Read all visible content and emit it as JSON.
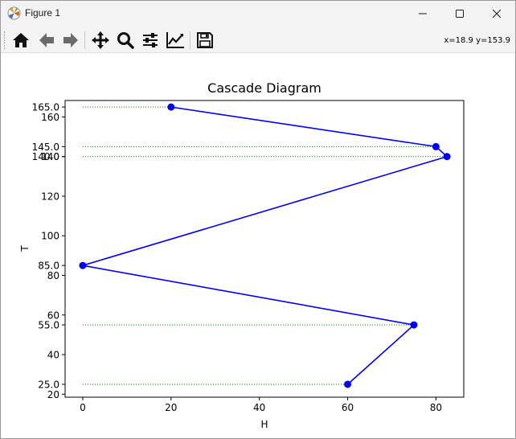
{
  "window": {
    "title": "Figure 1",
    "icons": {
      "app": "matplotlib-icon",
      "minimize": "minimize-icon",
      "maximize": "maximize-icon",
      "close": "close-icon"
    }
  },
  "toolbar": {
    "buttons": [
      {
        "name": "home",
        "icon": "home-icon",
        "tooltip": "Reset original view"
      },
      {
        "name": "back",
        "icon": "back-arrow-icon",
        "tooltip": "Back to previous view"
      },
      {
        "name": "forward",
        "icon": "forward-arrow-icon",
        "tooltip": "Forward to next view"
      },
      {
        "name": "pan",
        "icon": "pan-move-icon",
        "tooltip": "Pan axes"
      },
      {
        "name": "zoom",
        "icon": "zoom-magnifier-icon",
        "tooltip": "Zoom to rectangle"
      },
      {
        "name": "configure",
        "icon": "configure-sliders-icon",
        "tooltip": "Configure subplots"
      },
      {
        "name": "edit",
        "icon": "edit-axis-icon",
        "tooltip": "Edit axis, curve and image parameters"
      },
      {
        "name": "save",
        "icon": "save-floppy-icon",
        "tooltip": "Save the figure"
      }
    ],
    "coords_text": "x=18.9 y=153.9"
  },
  "chart_data": {
    "type": "line",
    "title": "Cascade Diagram",
    "xlabel": "H",
    "ylabel": "T",
    "xlim": [
      -4,
      86.3
    ],
    "ylim": [
      18.5,
      168.3
    ],
    "xticks": [
      0,
      20,
      40,
      60,
      80
    ],
    "yticks": [
      20,
      40,
      60,
      80,
      100,
      120,
      140,
      160
    ],
    "extra_yticks": [
      "25.0",
      "55.0",
      "85.0",
      "140.0",
      "145.0",
      "165.0"
    ],
    "extra_ytick_values": [
      25,
      55,
      85,
      140,
      145,
      165
    ],
    "series": [
      {
        "x": [
          60,
          75,
          0,
          82.5,
          80,
          20
        ],
        "y": [
          25,
          55,
          85,
          140,
          145,
          165
        ],
        "color": "#0000ff",
        "marker": "circle"
      }
    ],
    "guide_lines": {
      "color": "#008000",
      "style": "dotted",
      "segments": [
        {
          "y": 25,
          "x_start": 0,
          "x_end": 60
        },
        {
          "y": 55,
          "x_start": 0,
          "x_end": 75
        },
        {
          "y": 140,
          "x_start": 0,
          "x_end": 82.5
        },
        {
          "y": 145,
          "x_start": 0,
          "x_end": 80
        },
        {
          "y": 165,
          "x_start": 0,
          "x_end": 20
        }
      ]
    },
    "grid": false,
    "legend": "none"
  }
}
